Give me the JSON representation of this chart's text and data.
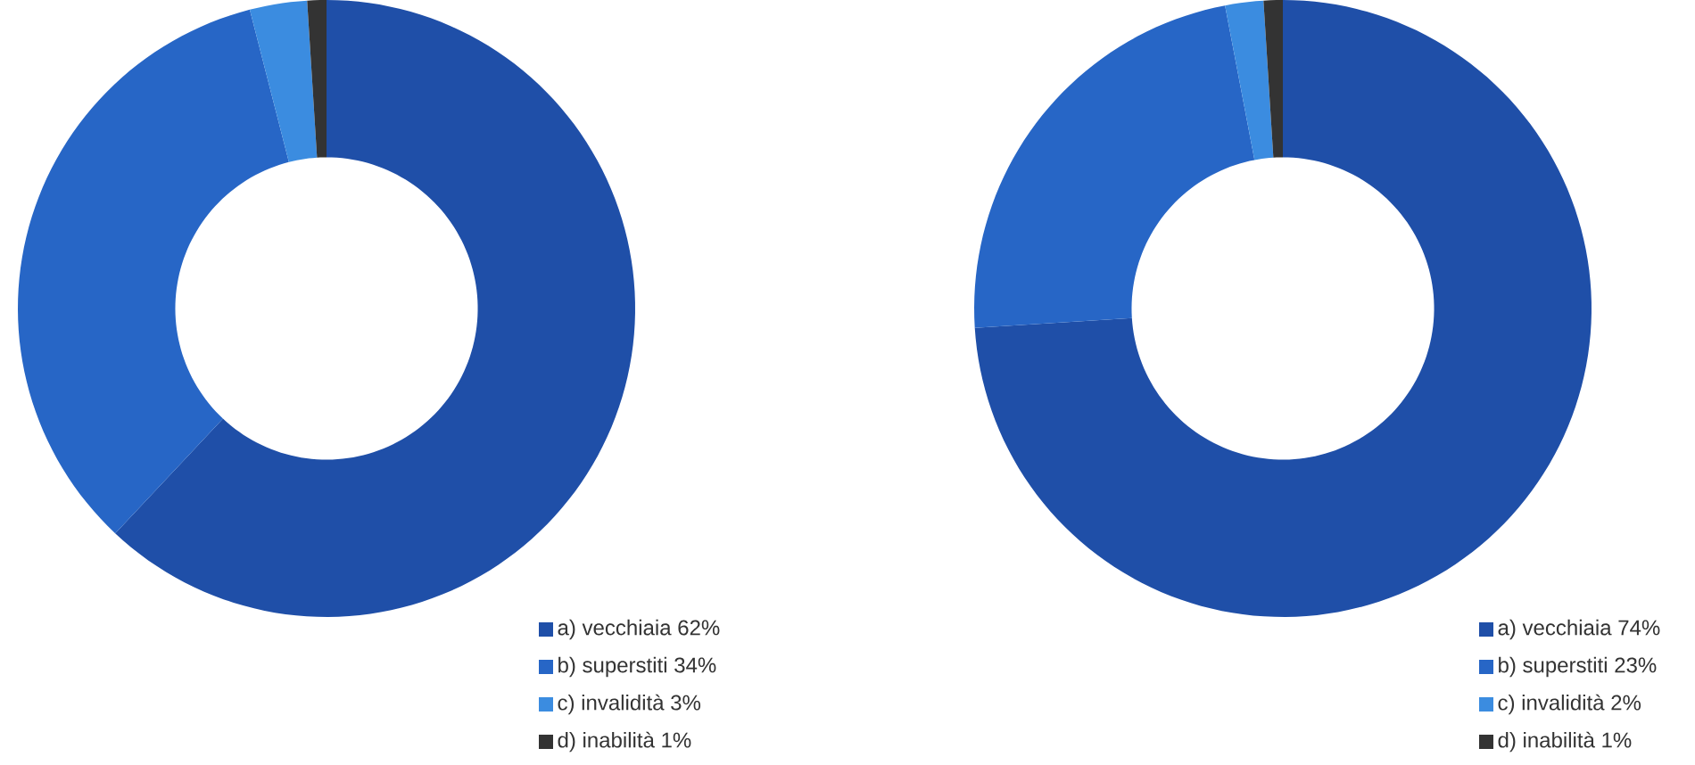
{
  "chart_data": [
    {
      "type": "donut",
      "categories": [
        "a) vecchiaia 62%",
        "b) superstiti 34%",
        "c) invalidità 3%",
        "d) inabilità 1%"
      ],
      "values": [
        62,
        34,
        3,
        1
      ],
      "colors": [
        "#1f4fa8",
        "#2766c6",
        "#3b8ce0",
        "#333333"
      ],
      "legend": "bottom right"
    },
    {
      "type": "donut",
      "categories": [
        "a) vecchiaia 74%",
        "b) superstiti 23%",
        "c) invalidità 2%",
        "d) inabilità 1%"
      ],
      "values": [
        74,
        23,
        2,
        1
      ],
      "colors": [
        "#1f4fa8",
        "#2766c6",
        "#3b8ce0",
        "#333333"
      ],
      "legend": "bottom right"
    }
  ]
}
